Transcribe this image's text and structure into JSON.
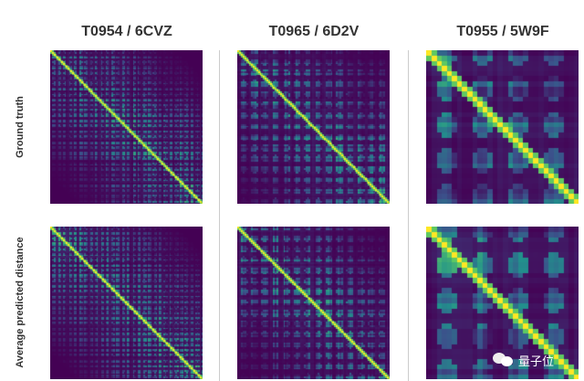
{
  "columns": [
    {
      "title": "T0954 / 6CVZ"
    },
    {
      "title": "T0965 / 6D2V"
    },
    {
      "title": "T0955 / 5W9F"
    }
  ],
  "rows": [
    {
      "label": "Ground truth"
    },
    {
      "label": "Average predicted distance"
    }
  ],
  "colormap": "viridis",
  "colors": {
    "low": "#440154",
    "mid": "#21918c",
    "high": "#fde725"
  },
  "watermark": {
    "text": "量子位",
    "icon": "wechat-icon"
  }
}
